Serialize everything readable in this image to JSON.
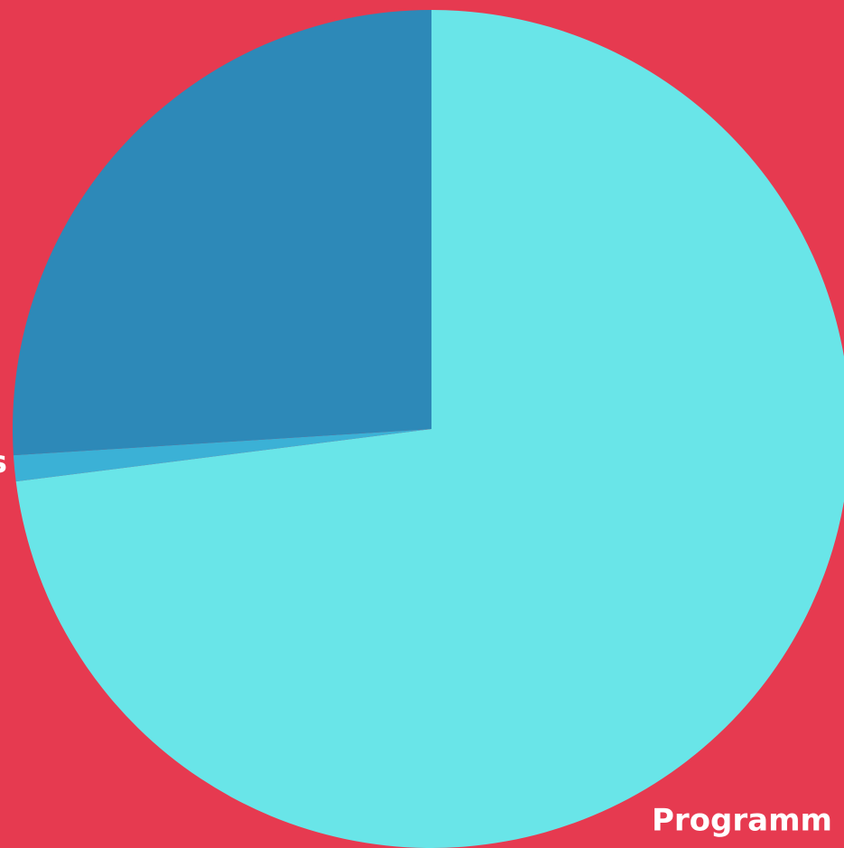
{
  "chart_data": {
    "type": "pie",
    "categories": [
      "Programm",
      "s",
      null
    ],
    "values": [
      73,
      1,
      26
    ],
    "colors": [
      "#69e5e8",
      "#3bb1d6",
      "#2d89b8"
    ]
  }
}
